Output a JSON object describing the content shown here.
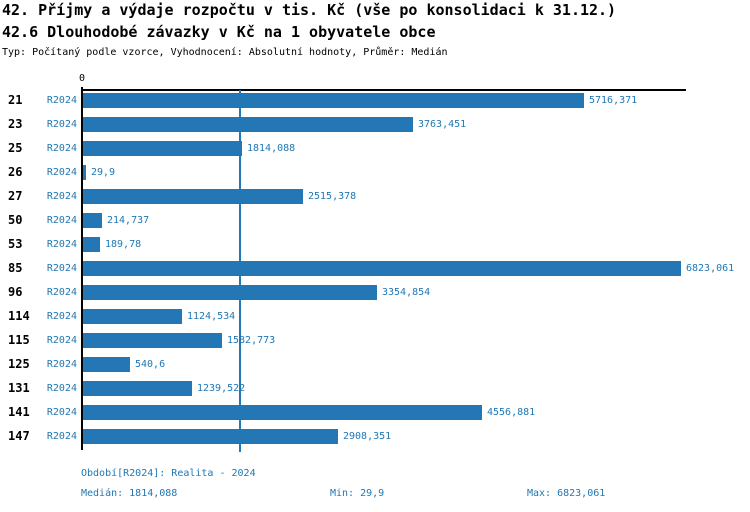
{
  "header": {
    "title_line1": "42. Příjmy a výdaje rozpočtu v tis. Kč (vše po konsolidaci k 31.12.)",
    "title_line2": "42.6 Dlouhodobé závazky v Kč na 1 obyvatele obce",
    "subtitle": "Typ: Počítaný podle vzorce, Vyhodnocení: Absolutní hodnoty, Průměr: Medián"
  },
  "chart_data": {
    "type": "bar",
    "orientation": "horizontal",
    "title": "42.6 Dlouhodobé závazky v Kč na 1 obyvatele obce",
    "x_origin_label": "0",
    "xlim": [
      0,
      6900
    ],
    "categories": [
      "21",
      "23",
      "25",
      "26",
      "27",
      "50",
      "53",
      "85",
      "96",
      "114",
      "115",
      "125",
      "131",
      "141",
      "147"
    ],
    "series": [
      {
        "name": "R2024",
        "values": [
          5716.371,
          3763.451,
          1814.088,
          29.9,
          2515.378,
          214.737,
          189.78,
          6823.061,
          3354.854,
          1124.534,
          1582.773,
          540.6,
          1239.522,
          4556.881,
          2908.351
        ],
        "value_labels": [
          "5716,371",
          "3763,451",
          "1814,088",
          "29,9",
          "2515,378",
          "214,737",
          "189,78",
          "6823,061",
          "3354,854",
          "1124,534",
          "1582,773",
          "540,6",
          "1239,522",
          "4556,881",
          "2908,351"
        ]
      }
    ],
    "median_line_value": 1814.088,
    "legend_position": "none",
    "grid": "median reference line only",
    "bar_color": "#2277b4",
    "accent_text_color": "#1f77b4",
    "axis_color": "#000000"
  },
  "footer": {
    "period_label": "Období[R2024]: Realita - 2024",
    "median_label": "Medián: 1814,088",
    "min_label": "Min: 29,9",
    "max_label": "Max: 6823,061"
  }
}
